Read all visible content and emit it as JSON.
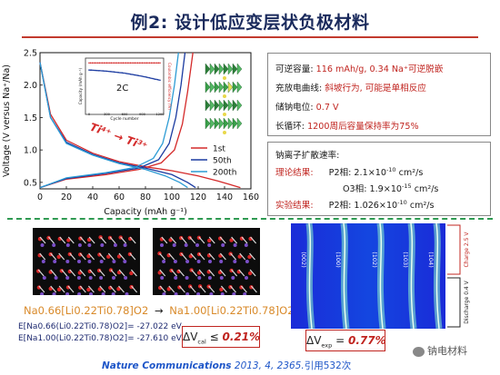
{
  "slide": {
    "title": "例2: 设计低应变层状负极材料"
  },
  "props_box": {
    "rows": [
      {
        "label": "可逆容量: ",
        "value": "116 mAh/g, 0.34 Na⁺可逆脱嵌"
      },
      {
        "label": "充放电曲线: ",
        "value": "斜坡行为, 可能是单相反应"
      },
      {
        "label": "储钠电位: ",
        "value": "0.7 V"
      },
      {
        "label": "长循环: ",
        "value": "1200周后容量保持率为75%"
      }
    ]
  },
  "diffusion_box": {
    "heading": "钠离子扩散速率:",
    "theory_label": "理论结果:",
    "theory_p2": "P2相: 2.1×10",
    "theory_p2_exp": "-10",
    "theory_o3": "O3相: 1.9×10",
    "theory_o3_exp": "-15",
    "unit": " cm²/s",
    "exp_label": "实验结果:",
    "exp_p2": "P2相: 1.026×10",
    "exp_p2_exp": "-10"
  },
  "formula": {
    "left": "Na0.66[Li0.22Ti0.78]O2",
    "right": "Na1.00[Li0.22Ti0.78]O2",
    "e1": "E[Na0.66(Li0.22Ti0.78)O2]= -27.022 eV",
    "e2": "E[Na1.00(Li0.22Ti0.78)O2]= -27.610 eV"
  },
  "dv_cal": {
    "prefix": "ΔV",
    "sub": "cal",
    "rel": " ≤ ",
    "value": "0.21%"
  },
  "dv_exp": {
    "prefix": "ΔV",
    "sub": "exp",
    "rel": " = ",
    "value": "0.77%"
  },
  "citation": {
    "journal": "Nature Communications",
    "rest": " 2013, 4, 2365.",
    "cited": "引用532次"
  },
  "watermark": {
    "text": "钠电材料"
  },
  "xrd": {
    "peaks": [
      "(002)",
      "(100)",
      "(102)",
      "(103)",
      "(104)"
    ],
    "charge_label": "Charge 2.5 V",
    "discharge_label": "Discharge 0.4 V"
  },
  "chart_data": {
    "type": "line",
    "xlabel": "Capacity (mAh g⁻¹)",
    "ylabel": "Voltage (V versus Na⁺/Na)",
    "xlim": [
      0,
      160
    ],
    "ylim": [
      0.4,
      2.5
    ],
    "xticks": [
      0,
      20,
      40,
      60,
      80,
      100,
      120,
      140,
      160
    ],
    "yticks": [
      0.5,
      1.0,
      1.5,
      2.0,
      2.5
    ],
    "annotation": "Ti⁴⁺ → Ti³⁺",
    "series": [
      {
        "name": "1st",
        "color": "#d42a2a",
        "discharge": [
          [
            0,
            2.35
          ],
          [
            8,
            1.55
          ],
          [
            20,
            1.15
          ],
          [
            40,
            0.95
          ],
          [
            60,
            0.82
          ],
          [
            80,
            0.74
          ],
          [
            100,
            0.68
          ],
          [
            120,
            0.6
          ],
          [
            135,
            0.52
          ],
          [
            152,
            0.42
          ]
        ],
        "charge": [
          [
            0,
            0.42
          ],
          [
            20,
            0.55
          ],
          [
            50,
            0.62
          ],
          [
            75,
            0.7
          ],
          [
            92,
            0.8
          ],
          [
            102,
            1.0
          ],
          [
            108,
            1.4
          ],
          [
            112,
            1.9
          ],
          [
            116,
            2.5
          ]
        ]
      },
      {
        "name": "50th",
        "color": "#1a3aa0",
        "discharge": [
          [
            0,
            2.35
          ],
          [
            8,
            1.5
          ],
          [
            20,
            1.12
          ],
          [
            40,
            0.93
          ],
          [
            60,
            0.8
          ],
          [
            80,
            0.72
          ],
          [
            100,
            0.62
          ],
          [
            112,
            0.5
          ],
          [
            118,
            0.42
          ]
        ],
        "charge": [
          [
            0,
            0.42
          ],
          [
            20,
            0.56
          ],
          [
            50,
            0.64
          ],
          [
            75,
            0.72
          ],
          [
            90,
            0.85
          ],
          [
            98,
            1.1
          ],
          [
            103,
            1.5
          ],
          [
            107,
            2.0
          ],
          [
            110,
            2.5
          ]
        ]
      },
      {
        "name": "200th",
        "color": "#2c9bd4",
        "discharge": [
          [
            0,
            2.35
          ],
          [
            8,
            1.5
          ],
          [
            20,
            1.1
          ],
          [
            40,
            0.92
          ],
          [
            60,
            0.79
          ],
          [
            80,
            0.7
          ],
          [
            95,
            0.6
          ],
          [
            106,
            0.5
          ],
          [
            112,
            0.42
          ]
        ],
        "charge": [
          [
            0,
            0.42
          ],
          [
            20,
            0.57
          ],
          [
            50,
            0.65
          ],
          [
            72,
            0.73
          ],
          [
            86,
            0.87
          ],
          [
            93,
            1.1
          ],
          [
            98,
            1.5
          ],
          [
            102,
            2.0
          ],
          [
            105,
            2.5
          ]
        ]
      }
    ],
    "inset": {
      "label": "2C",
      "xlabel": "Cycle number",
      "ylabel": "Capacity (mAh g⁻¹)",
      "ylabel_right": "Coulombic efficiency (%)",
      "xlim": [
        0,
        1200
      ],
      "ylim": [
        0,
        125
      ],
      "ylim_right": [
        0,
        100
      ],
      "xticks": [
        0,
        300,
        600,
        900,
        1200
      ],
      "capacity": [
        [
          0,
          104
        ],
        [
          100,
          103
        ],
        [
          300,
          101
        ],
        [
          600,
          96
        ],
        [
          900,
          88
        ],
        [
          1200,
          78
        ]
      ],
      "efficiency": [
        [
          0,
          99
        ],
        [
          1200,
          100
        ]
      ]
    }
  }
}
